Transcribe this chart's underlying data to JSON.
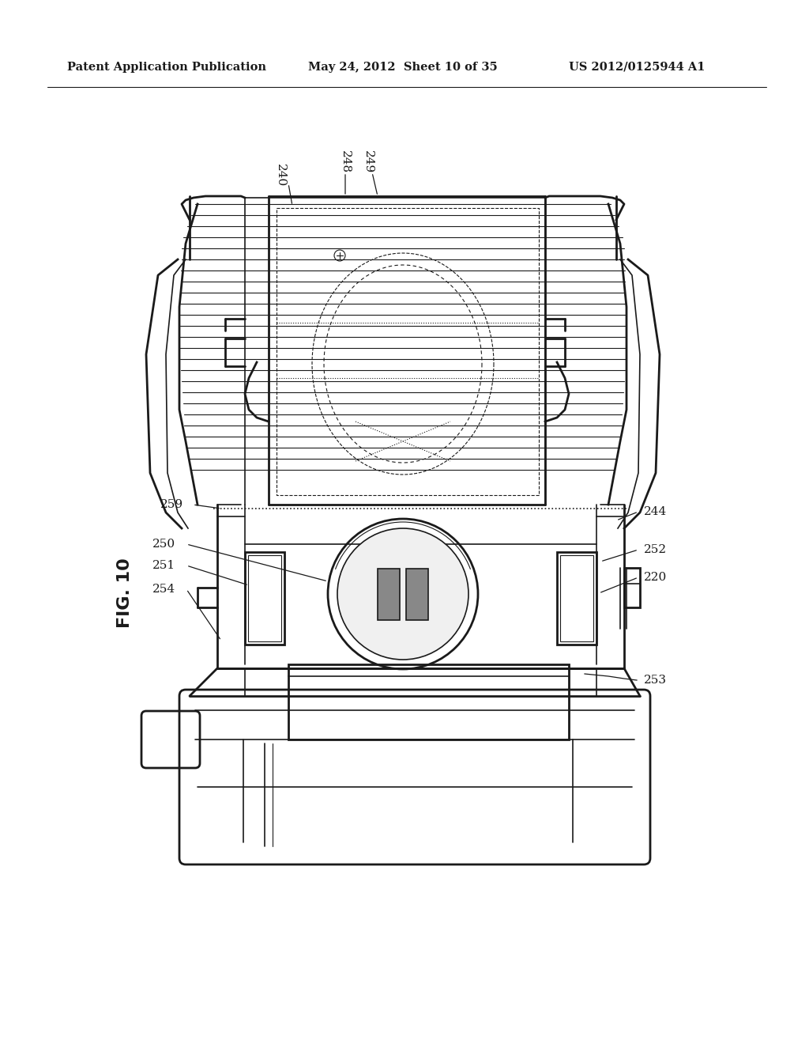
{
  "background_color": "#ffffff",
  "line_color": "#1a1a1a",
  "header_text": "Patent Application Publication",
  "header_date": "May 24, 2012  Sheet 10 of 35",
  "header_patent": "US 2012/0125944 A1",
  "fig_label": "FIG. 10",
  "labels": [
    "240",
    "248",
    "249",
    "244",
    "259",
    "252",
    "250",
    "251",
    "254",
    "220",
    "253"
  ]
}
